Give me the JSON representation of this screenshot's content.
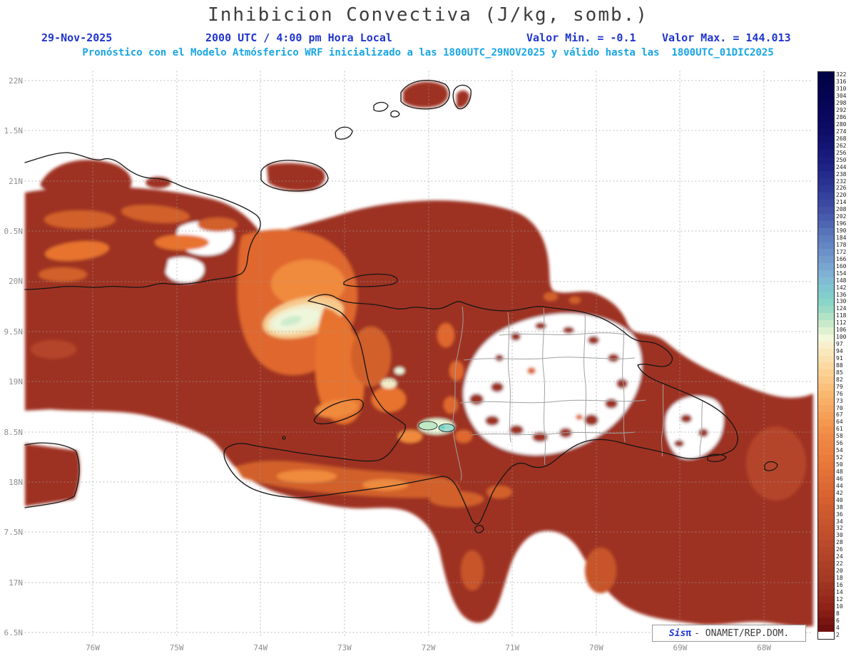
{
  "header": {
    "title": "Inhibicion Convectiva (J/kg, somb.)",
    "date": "29-Nov-2025",
    "time": "2000 UTC / 4:00 pm Hora Local",
    "min_label": "Valor Min. = -0.1",
    "max_label": "Valor Max. = 144.013",
    "forecast_line": "Pronóstico con el Modelo Atmósferico WRF inicializado a las 1800UTC_29NOV2025 y válido hasta las  1800UTC_01DIC2025"
  },
  "credit": {
    "sis": "Sis",
    "pi": "π",
    "rest": "- ONAMET/REP.DOM."
  },
  "chart_data": {
    "type": "heatmap",
    "title": "Inhibicion Convectiva (J/kg, somb.)",
    "units": "J/kg",
    "valid_date": "29-Nov-2025",
    "valid_time": "2000 UTC / 4:00 pm Hora Local",
    "value_min": -0.1,
    "value_max": 144.013,
    "model": "WRF",
    "init_time": "1800UTC_29NOV2025",
    "valid_until": "1800UTC_01DIC2025",
    "lat_ticks": [
      "22N",
      "1.5N",
      "21N",
      "0.5N",
      "20N",
      "9.5N",
      "19N",
      "8.5N",
      "18N",
      "7.5N",
      "17N",
      "6.5N"
    ],
    "lon_ticks": [
      "76W",
      "75W",
      "74W",
      "73W",
      "72W",
      "71W",
      "70W",
      "69W",
      "68W"
    ],
    "colorbar": {
      "ticks": [
        322,
        316,
        310,
        304,
        298,
        292,
        286,
        280,
        274,
        268,
        262,
        256,
        250,
        244,
        238,
        232,
        226,
        220,
        214,
        208,
        202,
        196,
        190,
        184,
        178,
        172,
        166,
        160,
        154,
        148,
        142,
        136,
        130,
        124,
        118,
        112,
        106,
        100,
        97,
        94,
        91,
        88,
        85,
        82,
        79,
        76,
        73,
        70,
        67,
        64,
        61,
        58,
        56,
        54,
        52,
        50,
        48,
        46,
        44,
        42,
        40,
        38,
        36,
        34,
        32,
        30,
        28,
        26,
        24,
        22,
        20,
        18,
        16,
        14,
        12,
        10,
        8,
        6,
        4,
        2
      ],
      "stops": [
        [
          2,
          "#ffffff"
        ],
        [
          4,
          "#70100d"
        ],
        [
          10,
          "#8f2318"
        ],
        [
          18,
          "#a23a24"
        ],
        [
          28,
          "#b94a2b"
        ],
        [
          40,
          "#d55f2f"
        ],
        [
          52,
          "#ea7b3a"
        ],
        [
          64,
          "#f4974f"
        ],
        [
          76,
          "#f9b870"
        ],
        [
          88,
          "#fcd9a0"
        ],
        [
          97,
          "#f9efcc"
        ],
        [
          100,
          "#f3f8da"
        ],
        [
          108,
          "#d8efcc"
        ],
        [
          118,
          "#b2e3c6"
        ],
        [
          128,
          "#8cd6c6"
        ],
        [
          140,
          "#7fc9cf"
        ],
        [
          152,
          "#83b4d6"
        ],
        [
          168,
          "#6f97cb"
        ],
        [
          185,
          "#5d7cbe"
        ],
        [
          205,
          "#4456aa"
        ],
        [
          225,
          "#2f3a98"
        ],
        [
          245,
          "#1d2384"
        ],
        [
          265,
          "#121270"
        ],
        [
          285,
          "#0a0960"
        ],
        [
          305,
          "#050452"
        ],
        [
          322,
          "#020246"
        ]
      ]
    }
  },
  "layout_hints": {
    "grid": "dotted",
    "legend_position": "right"
  }
}
